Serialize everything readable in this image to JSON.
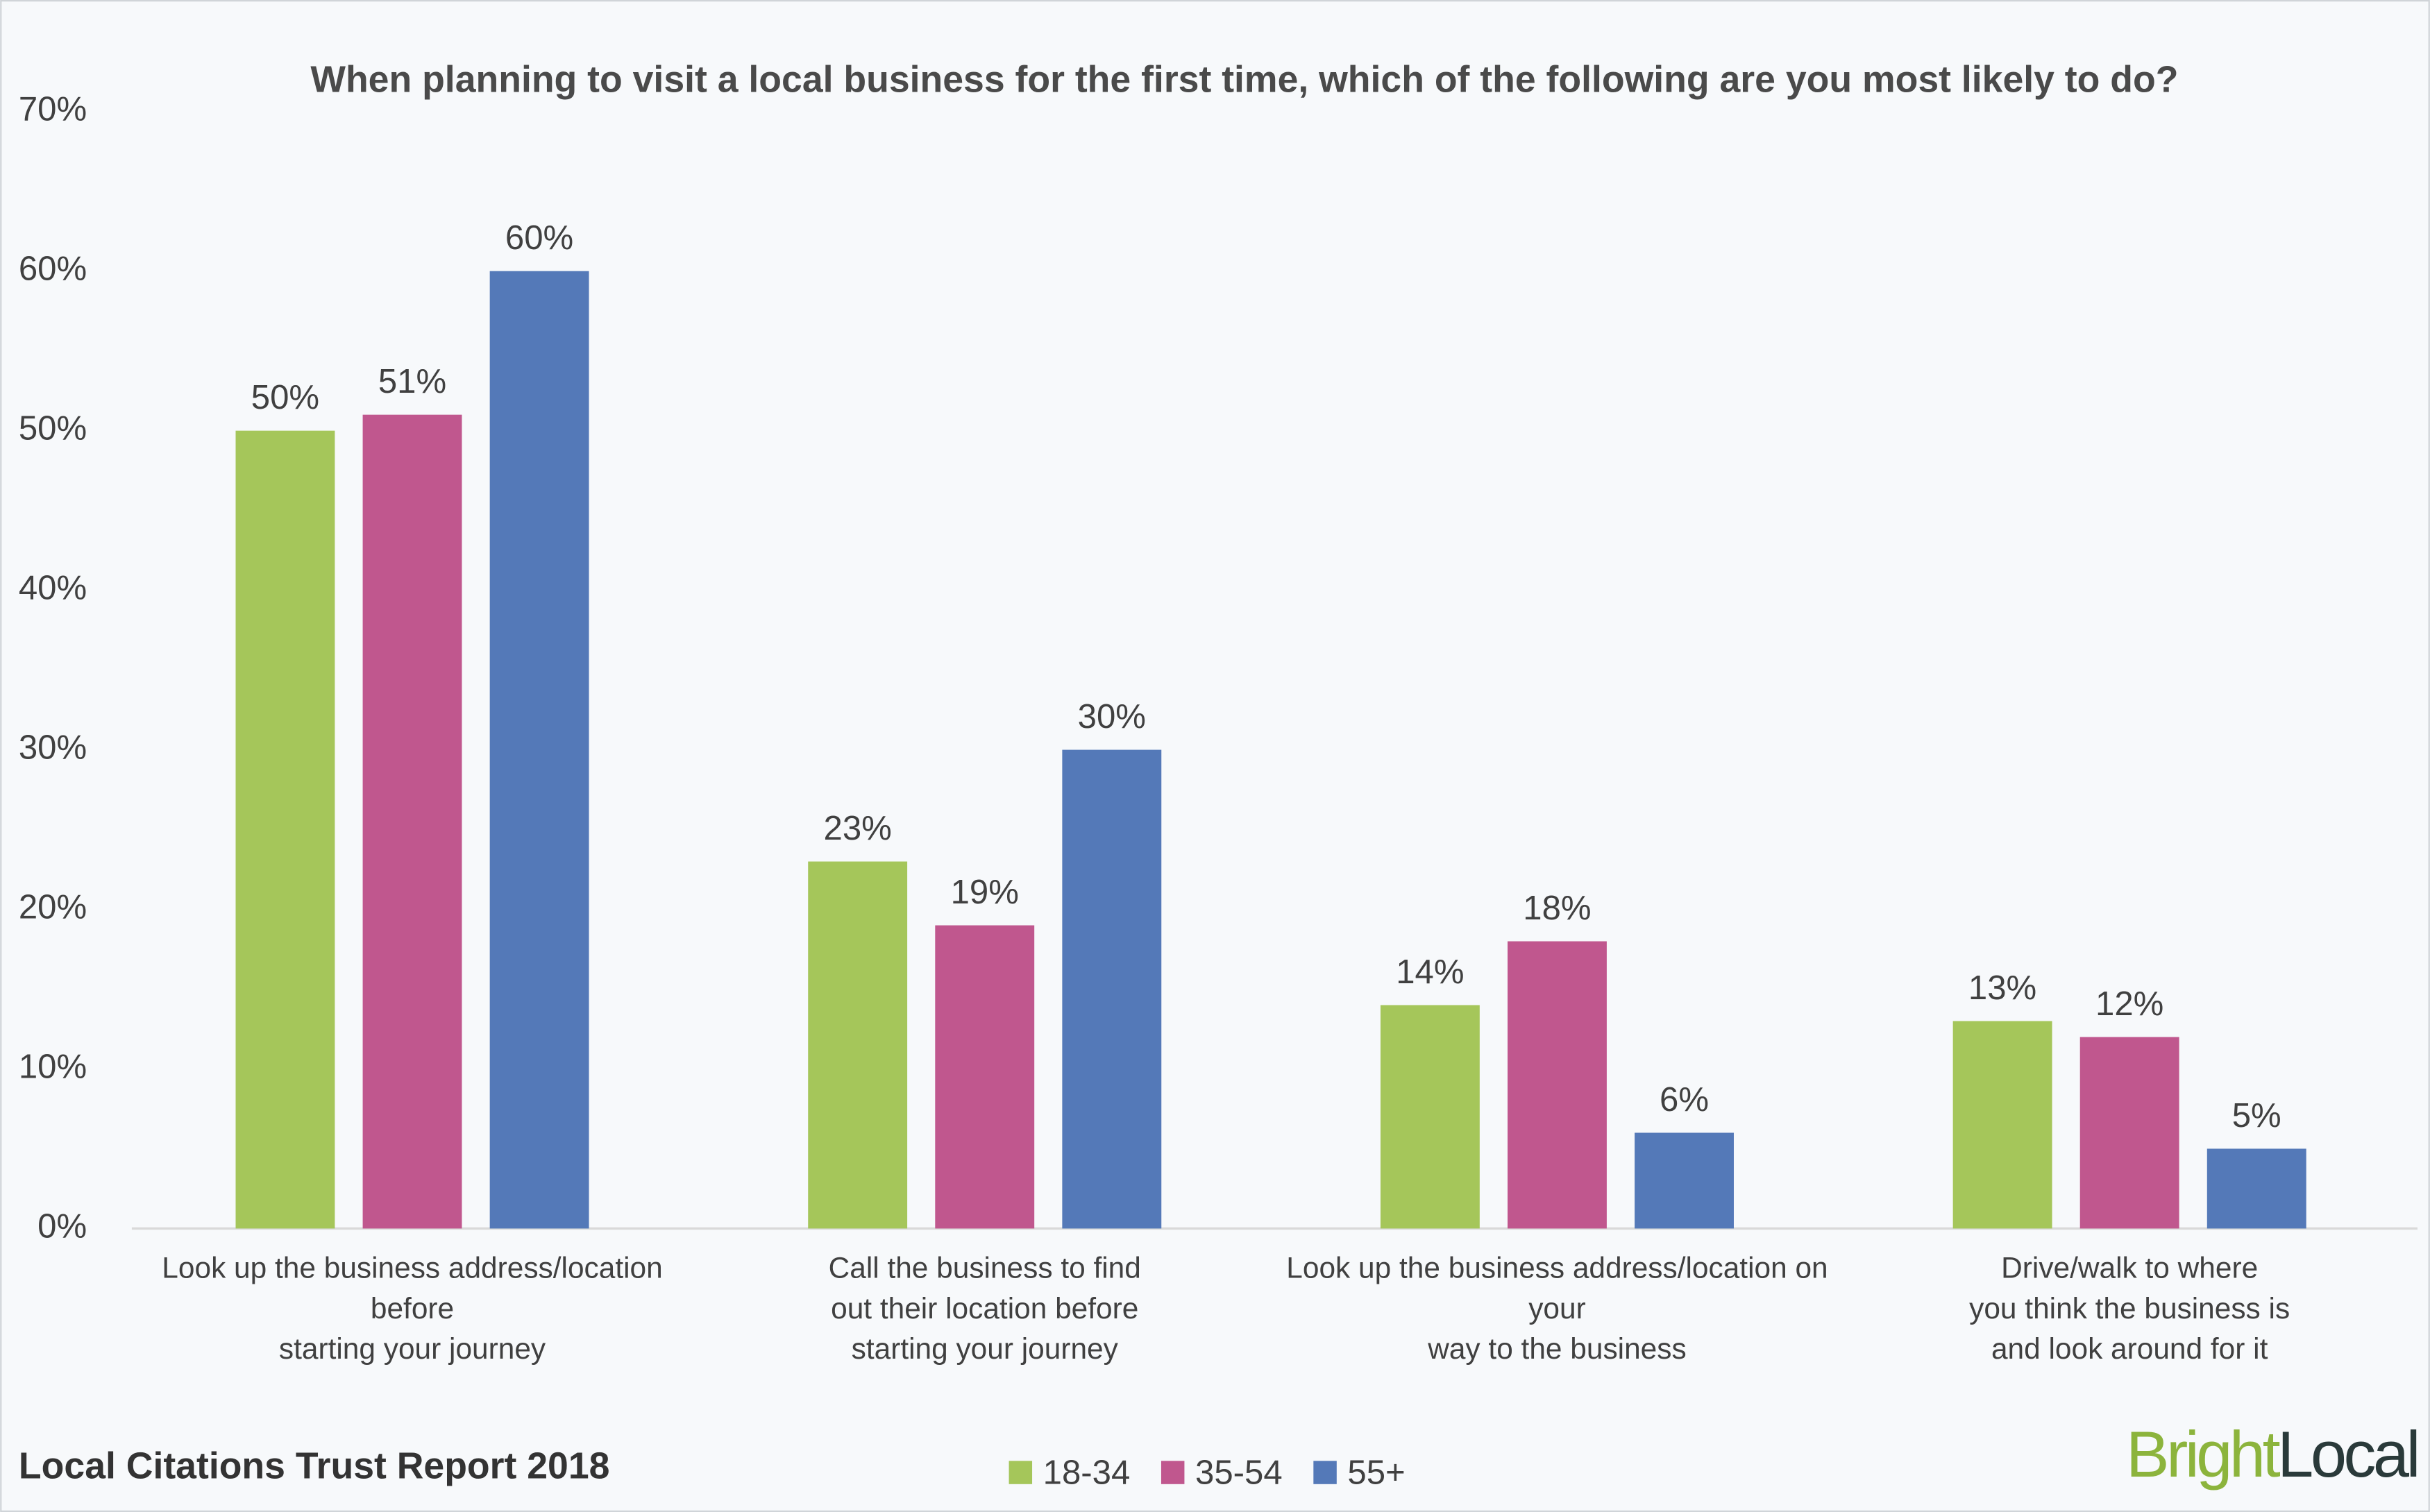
{
  "chart_data": {
    "type": "bar",
    "title": "When planning to visit a local business for the first time, which of the following are you most likely to do?",
    "categories": [
      "Look up the business address/location\nbefore\nstarting your journey",
      "Call the business to find\nout their location before\nstarting your journey",
      "Look up the business address/location on\nyour\nway to the business",
      "Drive/walk to where\nyou think the business is\nand look around for it"
    ],
    "series": [
      {
        "name": "18-34",
        "color": "#a5c65a",
        "values": [
          50,
          23,
          14,
          13
        ],
        "value_labels": [
          "50%",
          "23%",
          "14%",
          "13%"
        ]
      },
      {
        "name": "35-54",
        "color": "#c0578e",
        "values": [
          51,
          19,
          18,
          12
        ],
        "value_labels": [
          "51%",
          "19%",
          "18%",
          "12%"
        ]
      },
      {
        "name": "55+",
        "color": "#5479b8",
        "values": [
          60,
          30,
          6,
          5
        ],
        "value_labels": [
          "60%",
          "30%",
          "6%",
          "5%"
        ]
      }
    ],
    "ylim": [
      0,
      70
    ],
    "yticks": [
      {
        "value": 0,
        "label": "0%"
      },
      {
        "value": 10,
        "label": "10%"
      },
      {
        "value": 20,
        "label": "20%"
      },
      {
        "value": 30,
        "label": "30%"
      },
      {
        "value": 40,
        "label": "40%"
      },
      {
        "value": 50,
        "label": "50%"
      },
      {
        "value": 60,
        "label": "60%"
      },
      {
        "value": 70,
        "label": "70%"
      }
    ],
    "grid": false,
    "legend": "bottom",
    "footer": "Local Citations Trust Report 2018",
    "brand": [
      "Bright",
      "Local"
    ]
  }
}
